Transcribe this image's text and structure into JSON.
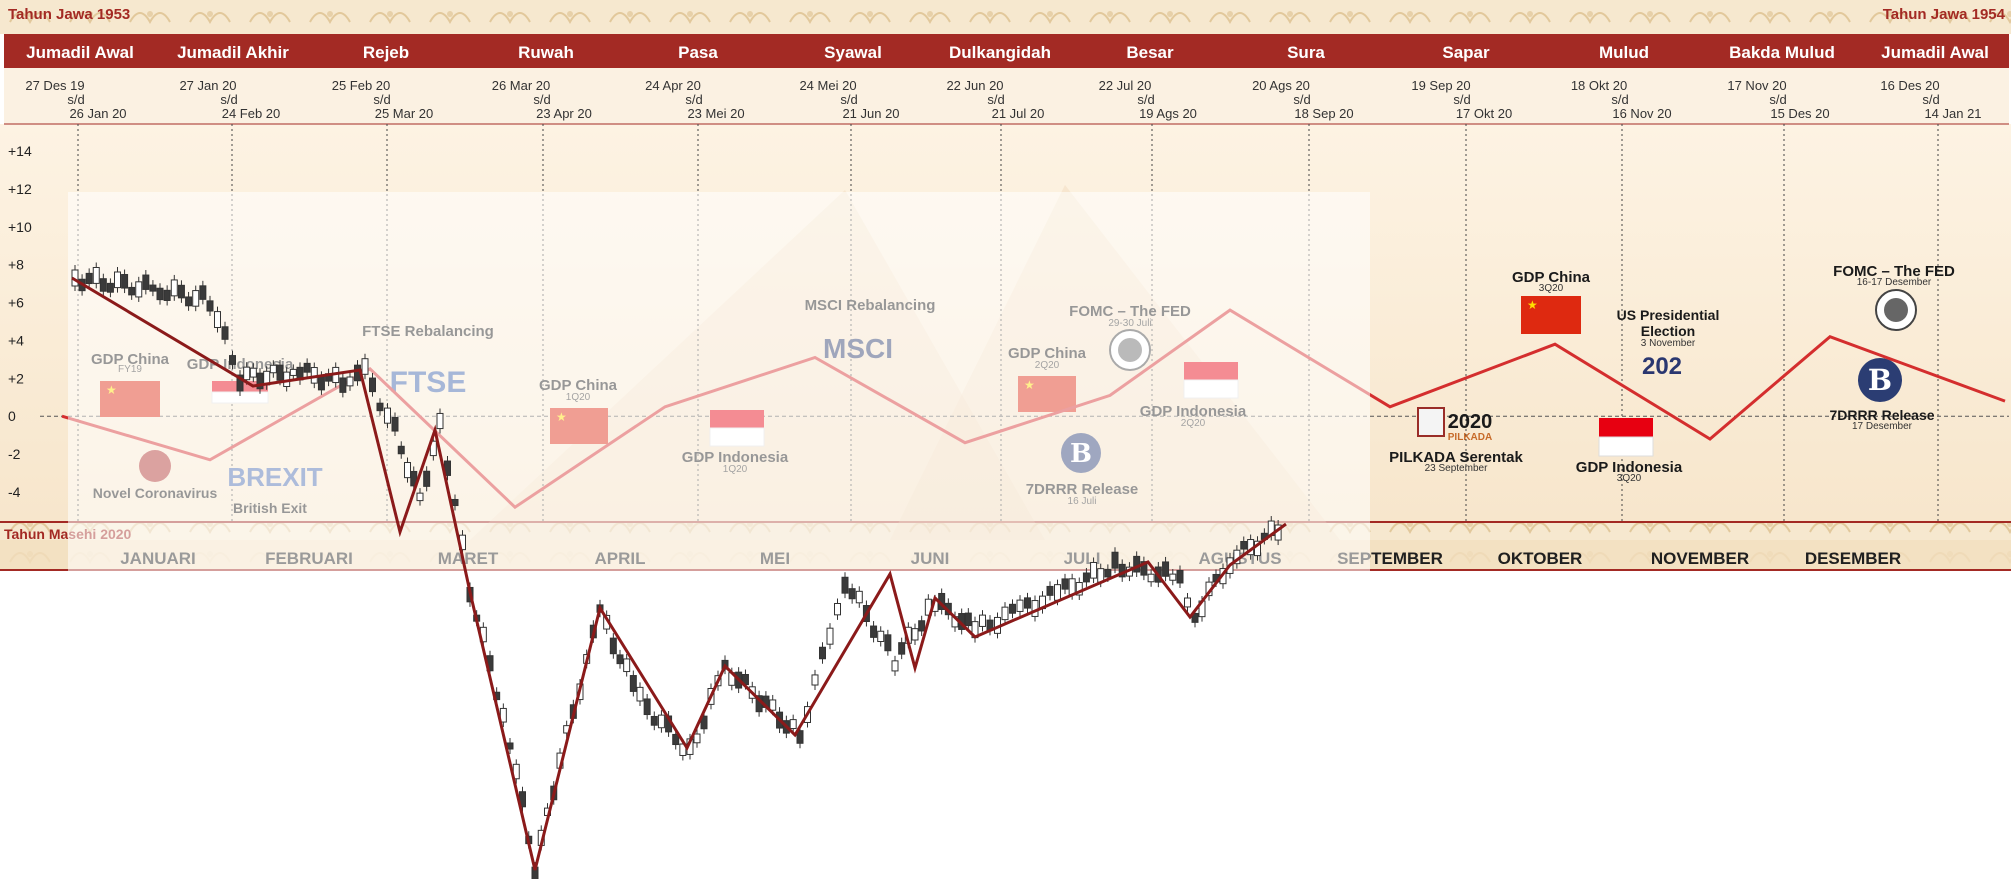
{
  "header": {
    "left_title": "Tahun Jawa 1953",
    "right_title": "Tahun Jawa 1954",
    "bottom_label": "Tahun Masehi 2020"
  },
  "javanese_months": [
    {
      "name": "Jumadil Awal",
      "start": "27 Des 19",
      "sd": "s/d",
      "end": "26 Jan 20"
    },
    {
      "name": "Jumadil Akhir",
      "start": "27 Jan 20",
      "sd": "s/d",
      "end": "24 Feb 20"
    },
    {
      "name": "Rejeb",
      "start": "25 Feb 20",
      "sd": "s/d",
      "end": "25 Mar 20"
    },
    {
      "name": "Ruwah",
      "start": "26 Mar 20",
      "sd": "s/d",
      "end": "23 Apr 20"
    },
    {
      "name": "Pasa",
      "start": "24 Apr 20",
      "sd": "s/d",
      "end": "23 Mei 20"
    },
    {
      "name": "Syawal",
      "start": "24 Mei 20",
      "sd": "s/d",
      "end": "21 Jun 20"
    },
    {
      "name": "Dulkangidah",
      "start": "22 Jun 20",
      "sd": "s/d",
      "end": "21 Jul 20"
    },
    {
      "name": "Besar",
      "start": "22 Jul 20",
      "sd": "s/d",
      "end": "19 Ags 20"
    },
    {
      "name": "Sura",
      "start": "20 Ags 20",
      "sd": "s/d",
      "end": "18 Sep 20"
    },
    {
      "name": "Sapar",
      "start": "19 Sep 20",
      "sd": "s/d",
      "end": "17 Okt 20"
    },
    {
      "name": "Mulud",
      "start": "18 Okt 20",
      "sd": "s/d",
      "end": "16 Nov 20"
    },
    {
      "name": "Bakda Mulud",
      "start": "17 Nov 20",
      "sd": "s/d",
      "end": "15 Des 20"
    },
    {
      "name": "Jumadil Awal",
      "start": "16 Des 20",
      "sd": "s/d",
      "end": "14 Jan 21"
    }
  ],
  "gregorian_months": [
    "JANUARI",
    "FEBRUARI",
    "MARET",
    "APRIL",
    "MEI",
    "JUNI",
    "JULI",
    "AGUSTUS",
    "SEPTEMBER",
    "OKTOBER",
    "NOVEMBER",
    "DESEMBER"
  ],
  "events": [
    {
      "title": "GDP China",
      "sub": "FY19",
      "icon": "flag-china-icon"
    },
    {
      "title": "GDP Indonesia",
      "sub": "",
      "icon": "flag-indonesia-icon"
    },
    {
      "title": "Novel Coronavirus",
      "sub": "",
      "icon": "virus-icon"
    },
    {
      "title": "British Exit",
      "sub": "",
      "icon": "brexit-logo-icon"
    },
    {
      "title": "FTSE Rebalancing",
      "sub": "",
      "icon": "ftse-logo-icon"
    },
    {
      "title": "GDP China",
      "sub": "1Q20",
      "icon": "flag-china-icon"
    },
    {
      "title": "GDP Indonesia",
      "sub": "1Q20",
      "icon": "flag-indonesia-icon"
    },
    {
      "title": "MSCI Rebalancing",
      "sub": "",
      "icon": "msci-logo-icon"
    },
    {
      "title": "FOMC – The FED",
      "sub": "29-30 Juli",
      "icon": "fed-seal-icon"
    },
    {
      "title": "GDP China",
      "sub": "2Q20",
      "icon": "flag-china-icon"
    },
    {
      "title": "GDP Indonesia",
      "sub": "2Q20",
      "icon": "flag-indonesia-icon"
    },
    {
      "title": "7DRRR Release",
      "sub": "16 Juli",
      "icon": "bank-indonesia-logo-icon"
    },
    {
      "title": "PILKADA Serentak",
      "sub": "23 September",
      "icon": "ballot-box-icon"
    },
    {
      "title": "GDP China",
      "sub": "3Q20",
      "icon": "flag-china-icon"
    },
    {
      "title": "US Presidential Election",
      "sub": "3 November",
      "icon": "election-2020-icon"
    },
    {
      "title": "GDP Indonesia",
      "sub": "3Q20",
      "icon": "flag-indonesia-icon"
    },
    {
      "title": "FOMC – The FED",
      "sub": "16-17 Desember",
      "icon": "fed-seal-icon"
    },
    {
      "title": "7DRRR Release",
      "sub": "17 Desember",
      "icon": "bank-indonesia-logo-icon"
    }
  ],
  "logo_texts": {
    "ftse": "FTSE",
    "msci": "MSCI",
    "brexit": "BREXIT",
    "pilkada_year": "2020",
    "pilkada_word": "PILKADA",
    "election": "202",
    "bi": "B"
  },
  "colors": {
    "header_band": "#a32a24",
    "candle_up": "#ffffff",
    "candle_down": "#3a3a3a",
    "trend_line": "#8b1a1a",
    "seasonal_line": "#d42e2e"
  },
  "chart_data": {
    "type": "line",
    "y_ticks": [
      "+14",
      "+12",
      "+10",
      "+8",
      "+6",
      "+4",
      "+2",
      "0",
      "-2",
      "-4"
    ],
    "ylim": [
      -4,
      14
    ],
    "series": [
      {
        "values": [
          0,
          -2.3,
          2.5,
          -4.8,
          0.5,
          3.1,
          -1.4,
          1.1,
          5.6,
          0.5,
          3.8,
          -1.2,
          4.2,
          0.8
        ]
      }
    ]
  }
}
